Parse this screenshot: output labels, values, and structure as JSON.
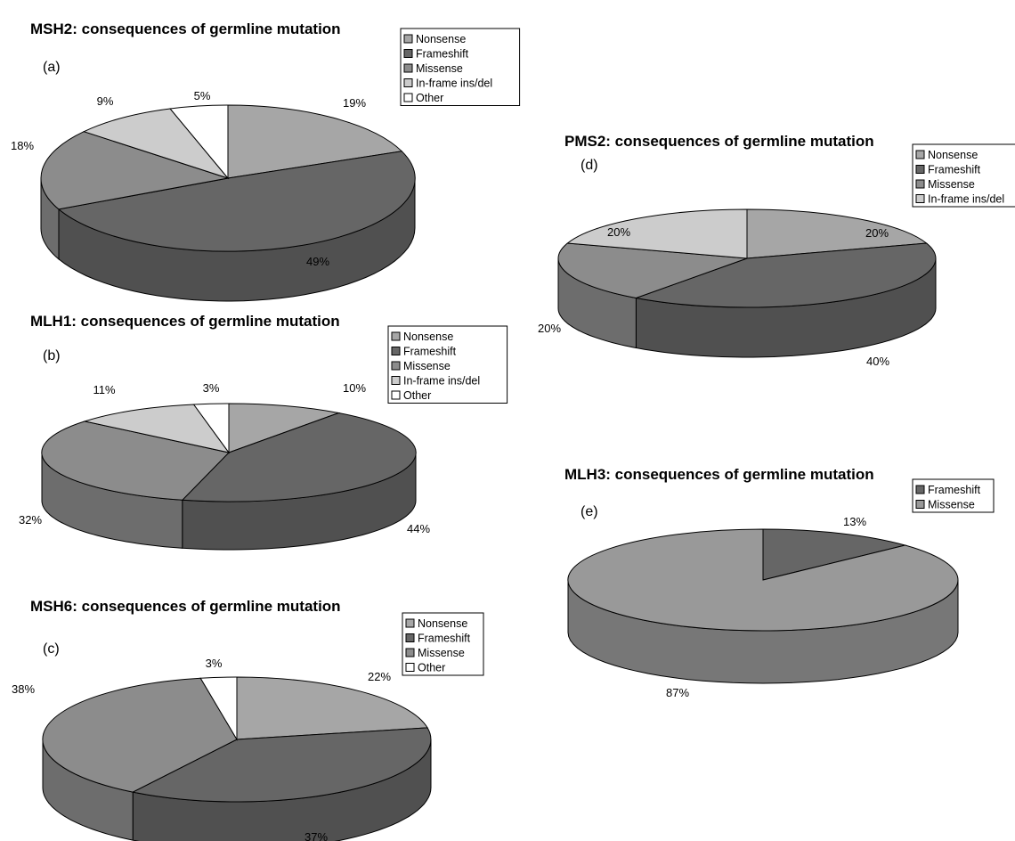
{
  "chart_data": [
    {
      "type": "pie",
      "title": "MSH2: consequences of germline mutation",
      "panel": "(a)",
      "legend_placement": "top-right",
      "categories": [
        "Nonsense",
        "Frameshift",
        "Missense",
        "In-frame ins/del",
        "Other"
      ],
      "values": [
        19,
        49,
        18,
        9,
        5
      ],
      "value_labels": [
        "19%",
        "49%",
        "18%",
        "9%",
        "5%"
      ]
    },
    {
      "type": "pie",
      "title": "MLH1: consequences of germline mutation",
      "panel": "(b)",
      "legend_placement": "top-right",
      "categories": [
        "Nonsense",
        "Frameshift",
        "Missense",
        "In-frame ins/del",
        "Other"
      ],
      "values": [
        10,
        44,
        32,
        11,
        3
      ],
      "value_labels": [
        "10%",
        "44%",
        "32%",
        "11%",
        "3%"
      ]
    },
    {
      "type": "pie",
      "title": "MSH6: consequences of germline mutation",
      "panel": "(c)",
      "legend_placement": "top-right",
      "categories": [
        "Nonsense",
        "Frameshift",
        "Missense",
        "Other"
      ],
      "values": [
        22,
        37,
        38,
        3
      ],
      "value_labels": [
        "22%",
        "37%",
        "38%",
        "3%"
      ]
    },
    {
      "type": "pie",
      "title": "PMS2: consequences of germline mutation",
      "panel": "(d)",
      "legend_placement": "top-right",
      "categories": [
        "Nonsense",
        "Frameshift",
        "Missense",
        "In-frame ins/del"
      ],
      "values": [
        20,
        40,
        20,
        20
      ],
      "value_labels": [
        "20%",
        "40%",
        "20%",
        "20%"
      ]
    },
    {
      "type": "pie",
      "title": "MLH3: consequences of germline mutation",
      "panel": "(e)",
      "legend_placement": "top-right",
      "categories": [
        "Frameshift",
        "Missense"
      ],
      "values": [
        13,
        87
      ],
      "value_labels": [
        "13%",
        "87%"
      ]
    }
  ],
  "colors": {
    "Nonsense": "#a6a6a6",
    "Frameshift": "#666666",
    "Missense": "#8c8c8c",
    "In-frame ins/del": "#cccccc",
    "Other": "#ffffff",
    "MLH3-Missense": "#999999",
    "MLH3-Frameshift": "#666666"
  }
}
